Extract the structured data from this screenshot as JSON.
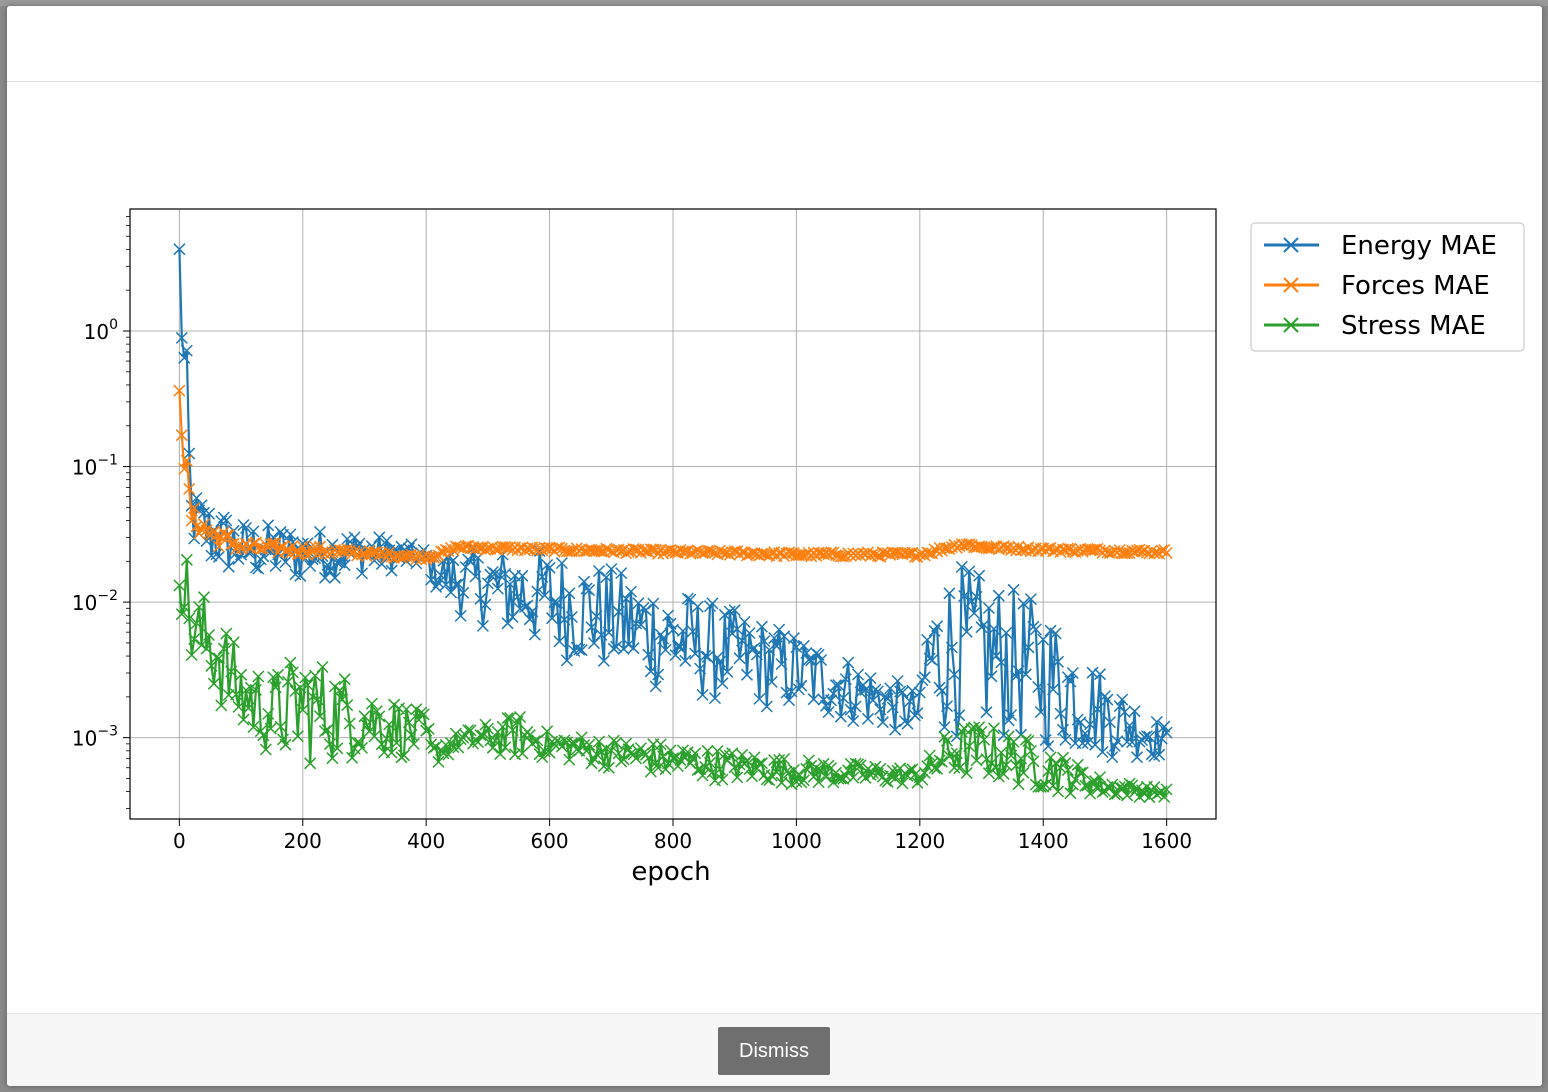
{
  "dialog": {
    "dismiss_label": "Dismiss"
  },
  "chart_data": {
    "type": "line",
    "xlabel": "epoch",
    "ylabel": "",
    "title": "",
    "xlim": [
      -80,
      1680
    ],
    "ylim_log10": [
      -3.6,
      0.9
    ],
    "yscale": "log",
    "grid": true,
    "legend_position": "outside-top-right",
    "x_ticks": [
      0,
      200,
      400,
      600,
      800,
      1000,
      1200,
      1400,
      1600
    ],
    "y_ticks": [
      {
        "base": "10",
        "exp": "0",
        "value": 1
      },
      {
        "base": "10",
        "exp": "−1",
        "value": 0.1
      },
      {
        "base": "10",
        "exp": "−2",
        "value": 0.01
      },
      {
        "base": "10",
        "exp": "−3",
        "value": 0.001
      }
    ],
    "marker": "x",
    "series": [
      {
        "name": "Energy MAE",
        "color": "#1f77b4",
        "envelope": [
          {
            "x": 0,
            "lo": 2.5,
            "hi": 5.0
          },
          {
            "x": 10,
            "lo": 0.04,
            "hi": 1.3
          },
          {
            "x": 20,
            "lo": 0.025,
            "hi": 0.07
          },
          {
            "x": 50,
            "lo": 0.017,
            "hi": 0.055
          },
          {
            "x": 100,
            "lo": 0.015,
            "hi": 0.04
          },
          {
            "x": 200,
            "lo": 0.014,
            "hi": 0.035
          },
          {
            "x": 300,
            "lo": 0.016,
            "hi": 0.033
          },
          {
            "x": 400,
            "lo": 0.018,
            "hi": 0.025
          },
          {
            "x": 410,
            "lo": 0.013,
            "hi": 0.022
          },
          {
            "x": 450,
            "lo": 0.008,
            "hi": 0.025
          },
          {
            "x": 600,
            "lo": 0.004,
            "hi": 0.025
          },
          {
            "x": 800,
            "lo": 0.002,
            "hi": 0.013
          },
          {
            "x": 1000,
            "lo": 0.0015,
            "hi": 0.006
          },
          {
            "x": 1200,
            "lo": 0.001,
            "hi": 0.0022
          },
          {
            "x": 1210,
            "lo": 0.001,
            "hi": 0.01
          },
          {
            "x": 1260,
            "lo": 0.001,
            "hi": 0.02
          },
          {
            "x": 1300,
            "lo": 0.001,
            "hi": 0.016
          },
          {
            "x": 1400,
            "lo": 0.0008,
            "hi": 0.01
          },
          {
            "x": 1500,
            "lo": 0.0007,
            "hi": 0.003
          },
          {
            "x": 1600,
            "lo": 0.0007,
            "hi": 0.0012
          }
        ]
      },
      {
        "name": "Forces MAE",
        "color": "#ff7f0e",
        "envelope": [
          {
            "x": 0,
            "lo": 0.3,
            "hi": 0.55
          },
          {
            "x": 10,
            "lo": 0.04,
            "hi": 0.2
          },
          {
            "x": 20,
            "lo": 0.03,
            "hi": 0.06
          },
          {
            "x": 50,
            "lo": 0.023,
            "hi": 0.045
          },
          {
            "x": 100,
            "lo": 0.022,
            "hi": 0.03
          },
          {
            "x": 200,
            "lo": 0.021,
            "hi": 0.028
          },
          {
            "x": 300,
            "lo": 0.021,
            "hi": 0.025
          },
          {
            "x": 400,
            "lo": 0.02,
            "hi": 0.023
          },
          {
            "x": 420,
            "lo": 0.021,
            "hi": 0.024
          },
          {
            "x": 450,
            "lo": 0.024,
            "hi": 0.027
          },
          {
            "x": 600,
            "lo": 0.023,
            "hi": 0.026
          },
          {
            "x": 800,
            "lo": 0.022,
            "hi": 0.025
          },
          {
            "x": 1000,
            "lo": 0.021,
            "hi": 0.024
          },
          {
            "x": 1200,
            "lo": 0.021,
            "hi": 0.024
          },
          {
            "x": 1270,
            "lo": 0.025,
            "hi": 0.029
          },
          {
            "x": 1300,
            "lo": 0.024,
            "hi": 0.027
          },
          {
            "x": 1400,
            "lo": 0.023,
            "hi": 0.026
          },
          {
            "x": 1600,
            "lo": 0.022,
            "hi": 0.025
          }
        ]
      },
      {
        "name": "Stress MAE",
        "color": "#2ca02c",
        "envelope": [
          {
            "x": 0,
            "lo": 0.012,
            "hi": 0.035
          },
          {
            "x": 10,
            "lo": 0.004,
            "hi": 0.03
          },
          {
            "x": 20,
            "lo": 0.003,
            "hi": 0.011
          },
          {
            "x": 50,
            "lo": 0.002,
            "hi": 0.012
          },
          {
            "x": 100,
            "lo": 0.001,
            "hi": 0.004
          },
          {
            "x": 150,
            "lo": 0.0007,
            "hi": 0.003
          },
          {
            "x": 200,
            "lo": 0.0006,
            "hi": 0.0045
          },
          {
            "x": 300,
            "lo": 0.0007,
            "hi": 0.0025
          },
          {
            "x": 400,
            "lo": 0.0007,
            "hi": 0.0015
          },
          {
            "x": 410,
            "lo": 0.0006,
            "hi": 0.0009
          },
          {
            "x": 450,
            "lo": 0.0008,
            "hi": 0.0011
          },
          {
            "x": 550,
            "lo": 0.0007,
            "hi": 0.0015
          },
          {
            "x": 600,
            "lo": 0.0007,
            "hi": 0.0011
          },
          {
            "x": 800,
            "lo": 0.0005,
            "hi": 0.0009
          },
          {
            "x": 1000,
            "lo": 0.00045,
            "hi": 0.0007
          },
          {
            "x": 1200,
            "lo": 0.00045,
            "hi": 0.0006
          },
          {
            "x": 1250,
            "lo": 0.0005,
            "hi": 0.0012
          },
          {
            "x": 1300,
            "lo": 0.0005,
            "hi": 0.0013
          },
          {
            "x": 1400,
            "lo": 0.0004,
            "hi": 0.0009
          },
          {
            "x": 1500,
            "lo": 0.00037,
            "hi": 0.0005
          },
          {
            "x": 1600,
            "lo": 0.00036,
            "hi": 0.00042
          }
        ]
      }
    ]
  }
}
